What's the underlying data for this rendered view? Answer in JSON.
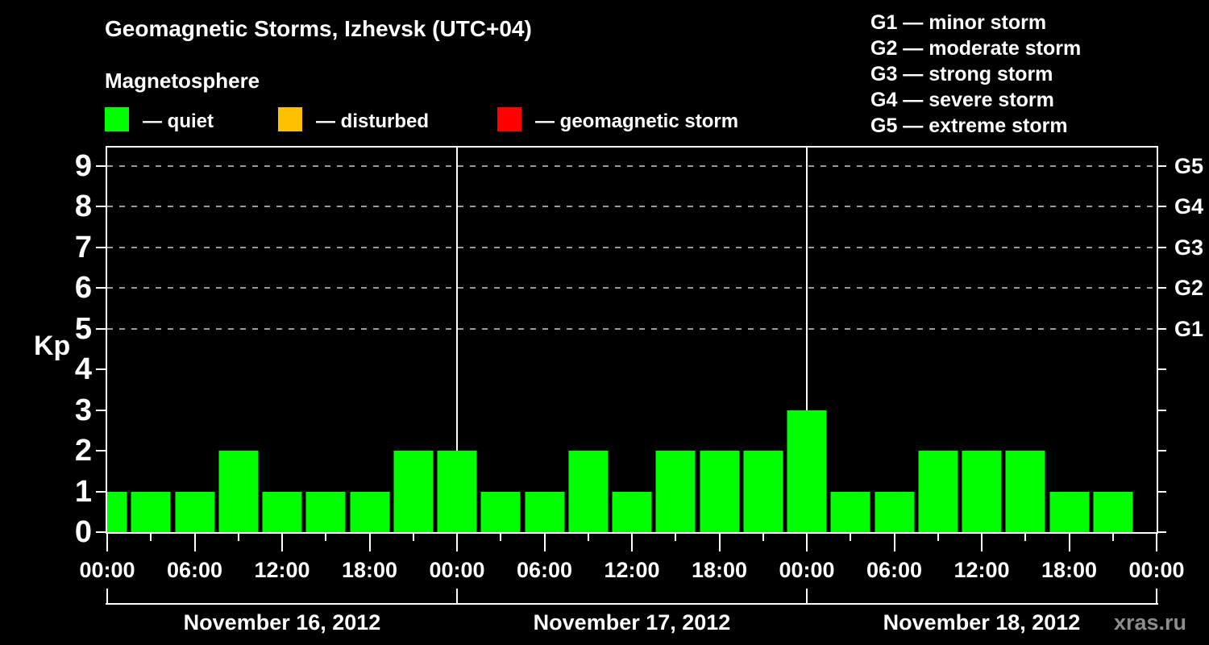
{
  "title": "Geomagnetic Storms, Izhevsk (UTC+04)",
  "subtitle": "Magnetosphere",
  "legend": {
    "items": [
      {
        "key": "quiet",
        "label": "— quiet",
        "color": "#00ff00"
      },
      {
        "key": "disturbed",
        "label": "— disturbed",
        "color": "#ffc000"
      },
      {
        "key": "storm",
        "label": "— geomagnetic storm",
        "color": "#ff0000"
      }
    ]
  },
  "g_legend": {
    "lines": [
      "G1 — minor storm",
      "G2 — moderate storm",
      "G3 — strong storm",
      "G4 — severe storm",
      "G5 — extreme storm"
    ]
  },
  "watermark": "xras.ru",
  "chart_data": {
    "type": "bar",
    "ylabel": "Kp",
    "ylim": [
      0,
      9.45
    ],
    "yticks": [
      0,
      1,
      2,
      3,
      4,
      5,
      6,
      7,
      8,
      9
    ],
    "gridlines_at": [
      5,
      6,
      7,
      8,
      9
    ],
    "right_axis_labels": [
      {
        "kp": 5,
        "label": "G1"
      },
      {
        "kp": 6,
        "label": "G2"
      },
      {
        "kp": 7,
        "label": "G3"
      },
      {
        "kp": 8,
        "label": "G4"
      },
      {
        "kp": 9,
        "label": "G5"
      }
    ],
    "total_hours": 72,
    "bar_step_hours": 3,
    "x_tick_minor_step_hours": 3,
    "x_tick_major_step_hours": 6,
    "x_tick_labels": [
      "00:00",
      "06:00",
      "12:00",
      "18:00",
      "00:00",
      "06:00",
      "12:00",
      "18:00",
      "00:00",
      "06:00",
      "12:00",
      "18:00",
      "00:00"
    ],
    "day_boundaries_hours": [
      24,
      48
    ],
    "days": [
      {
        "label": "November 16, 2012",
        "start_hour": 0,
        "end_hour": 24
      },
      {
        "label": "November 17, 2012",
        "start_hour": 24,
        "end_hour": 48
      },
      {
        "label": "November 18, 2012",
        "start_hour": 48,
        "end_hour": 72
      }
    ],
    "series": [
      {
        "name": "Kp index",
        "status": "quiet",
        "hours": [
          0,
          3,
          6,
          9,
          12,
          15,
          18,
          21,
          24,
          27,
          30,
          33,
          36,
          39,
          42,
          45,
          48,
          51,
          54,
          57,
          60,
          63,
          66,
          69
        ],
        "values": [
          1,
          1,
          1,
          2,
          1,
          1,
          1,
          2,
          2,
          1,
          1,
          2,
          1,
          2,
          2,
          2,
          3,
          1,
          1,
          2,
          2,
          2,
          1,
          1
        ]
      }
    ],
    "colors": {
      "bar_quiet": "#00ff00",
      "bar_disturbed": "#ffc000",
      "bar_storm": "#ff0000",
      "axis": "#ffffff",
      "grid": "#999999",
      "background": "#000000",
      "text": "#ffffff",
      "watermark_text": "#8c8c8c"
    }
  }
}
